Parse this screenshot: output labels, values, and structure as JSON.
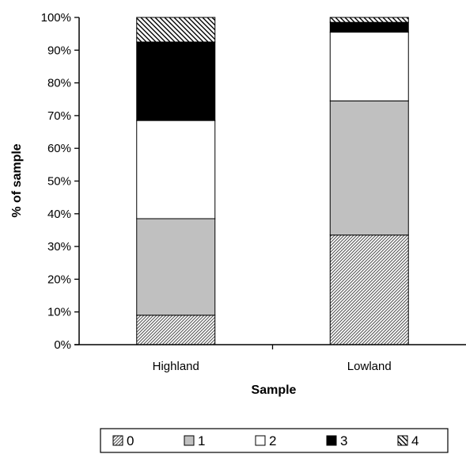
{
  "chart_data": {
    "type": "bar",
    "stacked": true,
    "percent_stacked": true,
    "categories": [
      "Highland",
      "Lowland"
    ],
    "series": [
      {
        "name": "0",
        "values": [
          9,
          33.5
        ],
        "fill": "hatch-dense",
        "color": "#808080"
      },
      {
        "name": "1",
        "values": [
          29.5,
          41
        ],
        "fill": "solid",
        "color": "#c0c0c0"
      },
      {
        "name": "2",
        "values": [
          30,
          21
        ],
        "fill": "solid",
        "color": "#ffffff"
      },
      {
        "name": "3",
        "values": [
          24,
          3
        ],
        "fill": "solid",
        "color": "#000000"
      },
      {
        "name": "4",
        "values": [
          7.5,
          1.5
        ],
        "fill": "hatch-wide",
        "color": "#000000"
      }
    ],
    "title": "",
    "xlabel": "Sample",
    "ylabel": "% of sample",
    "ylim": [
      0,
      100
    ],
    "yticks": [
      "0%",
      "10%",
      "20%",
      "30%",
      "40%",
      "50%",
      "60%",
      "70%",
      "80%",
      "90%",
      "100%"
    ],
    "grid": false,
    "legend": "bottom"
  }
}
